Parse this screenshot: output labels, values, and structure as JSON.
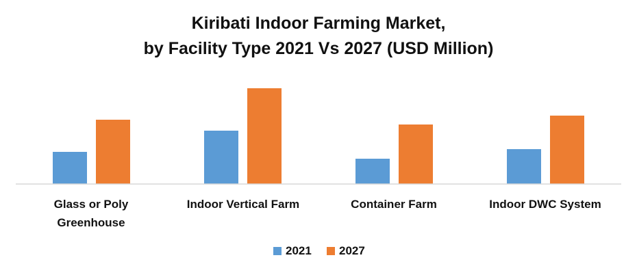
{
  "chart_data": {
    "type": "bar",
    "title_lines": [
      "Kiribati Indoor Farming Market,",
      "by Facility Type 2021 Vs 2027 (USD Million)"
    ],
    "categories": [
      [
        "Glass or Poly",
        "Greenhouse"
      ],
      [
        "Indoor Vertical Farm"
      ],
      [
        "Container Farm"
      ],
      [
        "Indoor DWC System"
      ]
    ],
    "series": [
      {
        "name": "2021",
        "color": "#5B9BD5",
        "values": [
          47,
          78,
          37,
          51
        ]
      },
      {
        "name": "2027",
        "color": "#ED7D31",
        "values": [
          94,
          140,
          87,
          100
        ]
      }
    ],
    "ylim": [
      0,
      150
    ],
    "grid": false,
    "legend": "bottom",
    "axis_color": "#D9D9D9"
  }
}
